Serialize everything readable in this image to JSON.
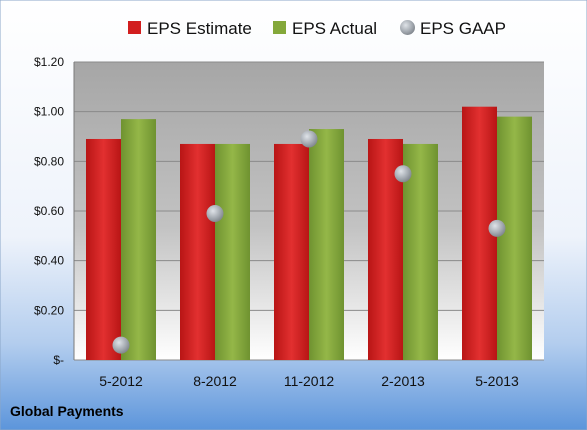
{
  "chart_data": {
    "type": "bar",
    "categories": [
      "5-2012",
      "8-2012",
      "11-2012",
      "2-2013",
      "5-2013"
    ],
    "series": [
      {
        "name": "EPS Estimate",
        "type": "bar",
        "color": "#d21e1e",
        "values": [
          0.89,
          0.87,
          0.87,
          0.89,
          1.02
        ]
      },
      {
        "name": "EPS Actual",
        "type": "bar",
        "color": "#84a83a",
        "values": [
          0.97,
          0.87,
          0.93,
          0.87,
          0.98
        ]
      },
      {
        "name": "EPS GAAP",
        "type": "scatter",
        "color": "#a8aeb4",
        "values": [
          0.06,
          0.59,
          0.89,
          0.75,
          0.53
        ]
      }
    ],
    "ylim": [
      0,
      1.2
    ],
    "yticks": [
      0,
      0.2,
      0.4,
      0.6,
      0.8,
      1.0,
      1.2
    ],
    "ytick_labels": [
      "$-",
      "$0.20",
      "$0.40",
      "$0.60",
      "$0.80",
      "$1.00",
      "$1.20"
    ],
    "grid": true,
    "legend_position": "top"
  },
  "company_label": "Global Payments"
}
